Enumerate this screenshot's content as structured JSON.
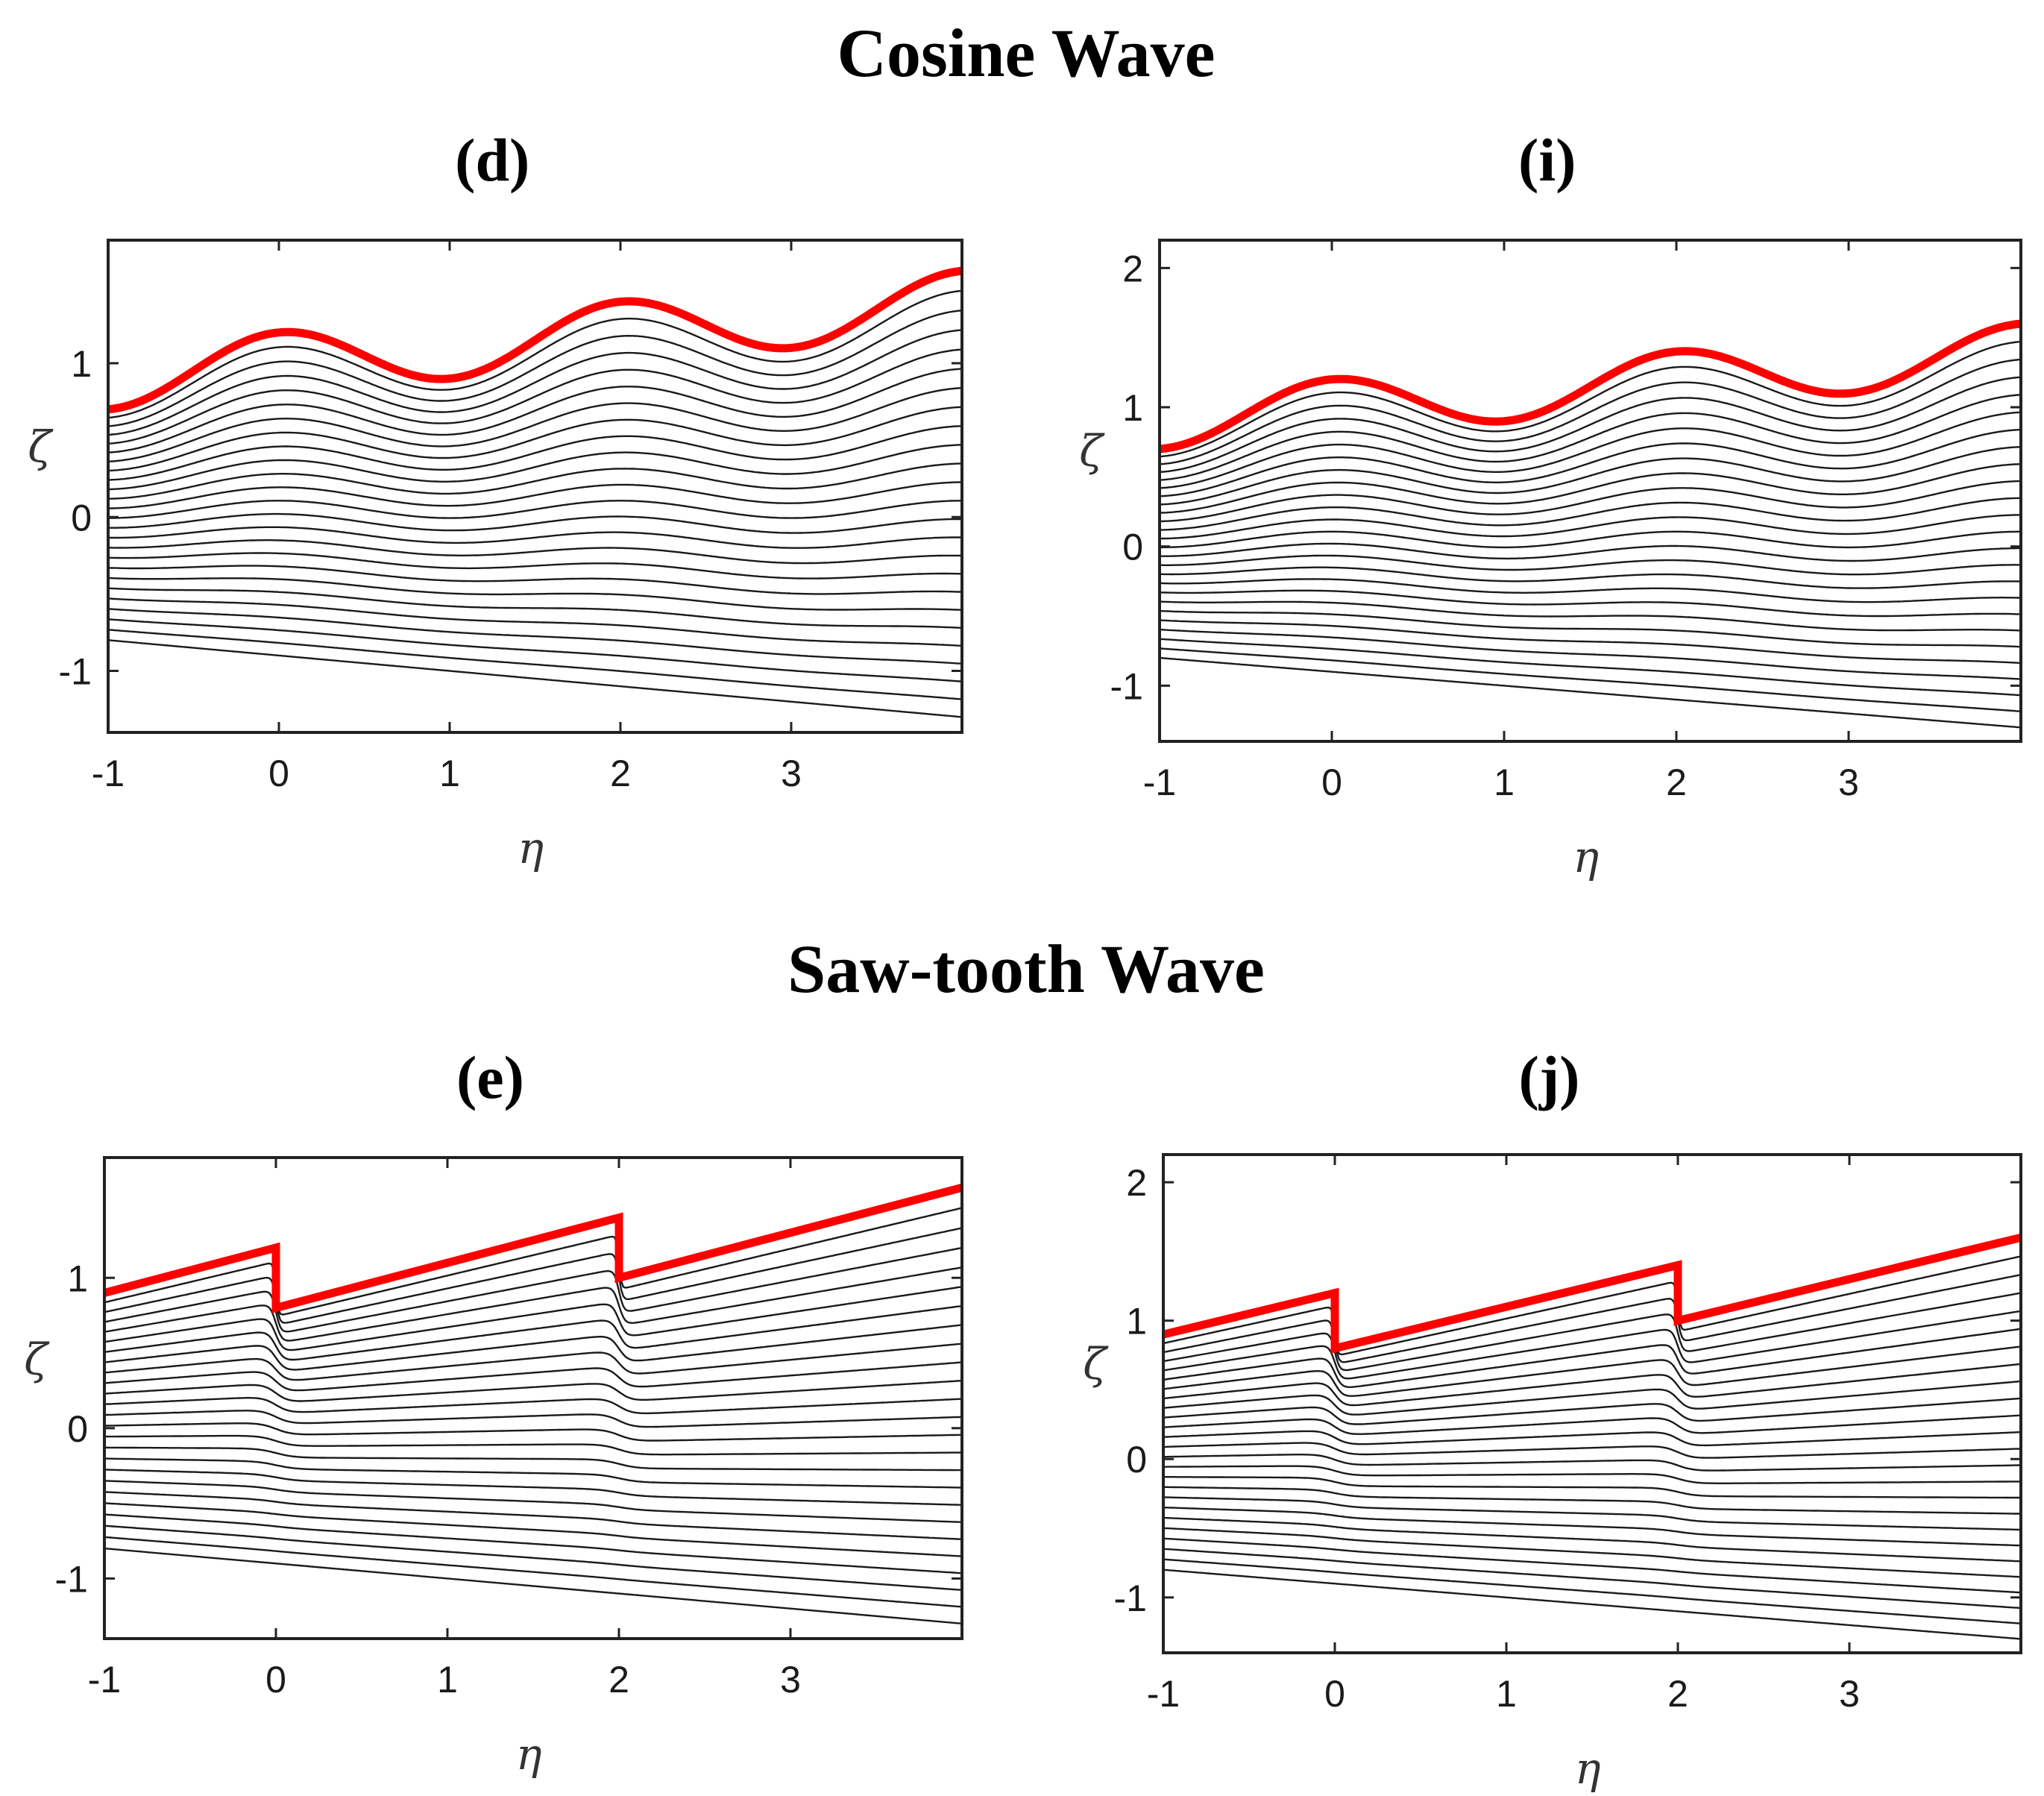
{
  "sections": [
    {
      "title": "Cosine Wave"
    },
    {
      "title": "Saw-tooth Wave"
    }
  ],
  "chart_data": [
    {
      "panel": "(d)",
      "type": "line",
      "wave": "cosine",
      "xlabel": "η",
      "ylabel": "ζ",
      "xlim": [
        -1,
        4
      ],
      "ylim": [
        -1.4,
        1.8
      ],
      "xticks": [
        "-1",
        "0",
        "1",
        "2",
        "3"
      ],
      "yticks": [
        "-1",
        "0",
        "1"
      ],
      "wall_color": "#ff0000",
      "streamline_color": "#1a1a1a",
      "streamline_count": 25,
      "wall_series": {
        "name": "upper wall",
        "x": [
          -1,
          -0.5,
          0,
          0.5,
          1,
          1.5,
          2,
          2.5,
          3,
          3.5,
          4
        ],
        "y": [
          0.7,
          1.01,
          1.2,
          1.11,
          0.9,
          1.11,
          1.4,
          1.37,
          1.1,
          1.25,
          1.6
        ]
      },
      "lower_series": {
        "name": "lowest streamline",
        "x": [
          -1,
          4
        ],
        "y": [
          -0.8,
          -1.3
        ]
      }
    },
    {
      "panel": "(i)",
      "type": "line",
      "wave": "cosine",
      "xlabel": "η",
      "ylabel": "ζ",
      "xlim": [
        -1,
        4
      ],
      "ylim": [
        -1.4,
        2.2
      ],
      "xticks": [
        "-1",
        "0",
        "1",
        "2",
        "3"
      ],
      "yticks": [
        "-1",
        "0",
        "1",
        "2"
      ],
      "wall_color": "#ff0000",
      "streamline_color": "#1a1a1a",
      "streamline_count": 25,
      "wall_series": {
        "name": "upper wall",
        "x": [
          -1,
          -0.5,
          0,
          0.5,
          1,
          1.5,
          2,
          2.5,
          3,
          3.5,
          4
        ],
        "y": [
          0.7,
          1.01,
          1.2,
          1.11,
          0.9,
          1.11,
          1.4,
          1.37,
          1.1,
          1.25,
          1.6
        ]
      },
      "lower_series": {
        "name": "lowest streamline",
        "x": [
          -1,
          4
        ],
        "y": [
          -0.8,
          -1.3
        ]
      }
    },
    {
      "panel": "(e)",
      "type": "line",
      "wave": "sawtooth",
      "xlabel": "η",
      "ylabel": "ζ",
      "xlim": [
        -1,
        4
      ],
      "ylim": [
        -1.4,
        1.8
      ],
      "xticks": [
        "-1",
        "0",
        "1",
        "2",
        "3"
      ],
      "yticks": [
        "-1",
        "0",
        "1"
      ],
      "wall_color": "#ff0000",
      "streamline_color": "#1a1a1a",
      "streamline_count": 25,
      "wall_series": {
        "name": "upper wall",
        "x": [
          -1,
          0,
          0,
          2,
          2,
          4
        ],
        "y": [
          0.9,
          1.2,
          0.8,
          1.4,
          1.0,
          1.6
        ]
      },
      "lower_series": {
        "name": "lowest streamline",
        "x": [
          -1,
          4
        ],
        "y": [
          -0.8,
          -1.3
        ]
      }
    },
    {
      "panel": "(j)",
      "type": "line",
      "wave": "sawtooth",
      "xlabel": "η",
      "ylabel": "ζ",
      "xlim": [
        -1,
        4
      ],
      "ylim": [
        -1.4,
        2.2
      ],
      "xticks": [
        "-1",
        "0",
        "1",
        "2",
        "3"
      ],
      "yticks": [
        "-1",
        "0",
        "1",
        "2"
      ],
      "wall_color": "#ff0000",
      "streamline_color": "#1a1a1a",
      "streamline_count": 25,
      "wall_series": {
        "name": "upper wall",
        "x": [
          -1,
          0,
          0,
          2,
          2,
          4
        ],
        "y": [
          0.9,
          1.2,
          0.8,
          1.4,
          1.0,
          1.6
        ]
      },
      "lower_series": {
        "name": "lowest streamline",
        "x": [
          -1,
          4
        ],
        "y": [
          -0.8,
          -1.3
        ]
      }
    }
  ]
}
